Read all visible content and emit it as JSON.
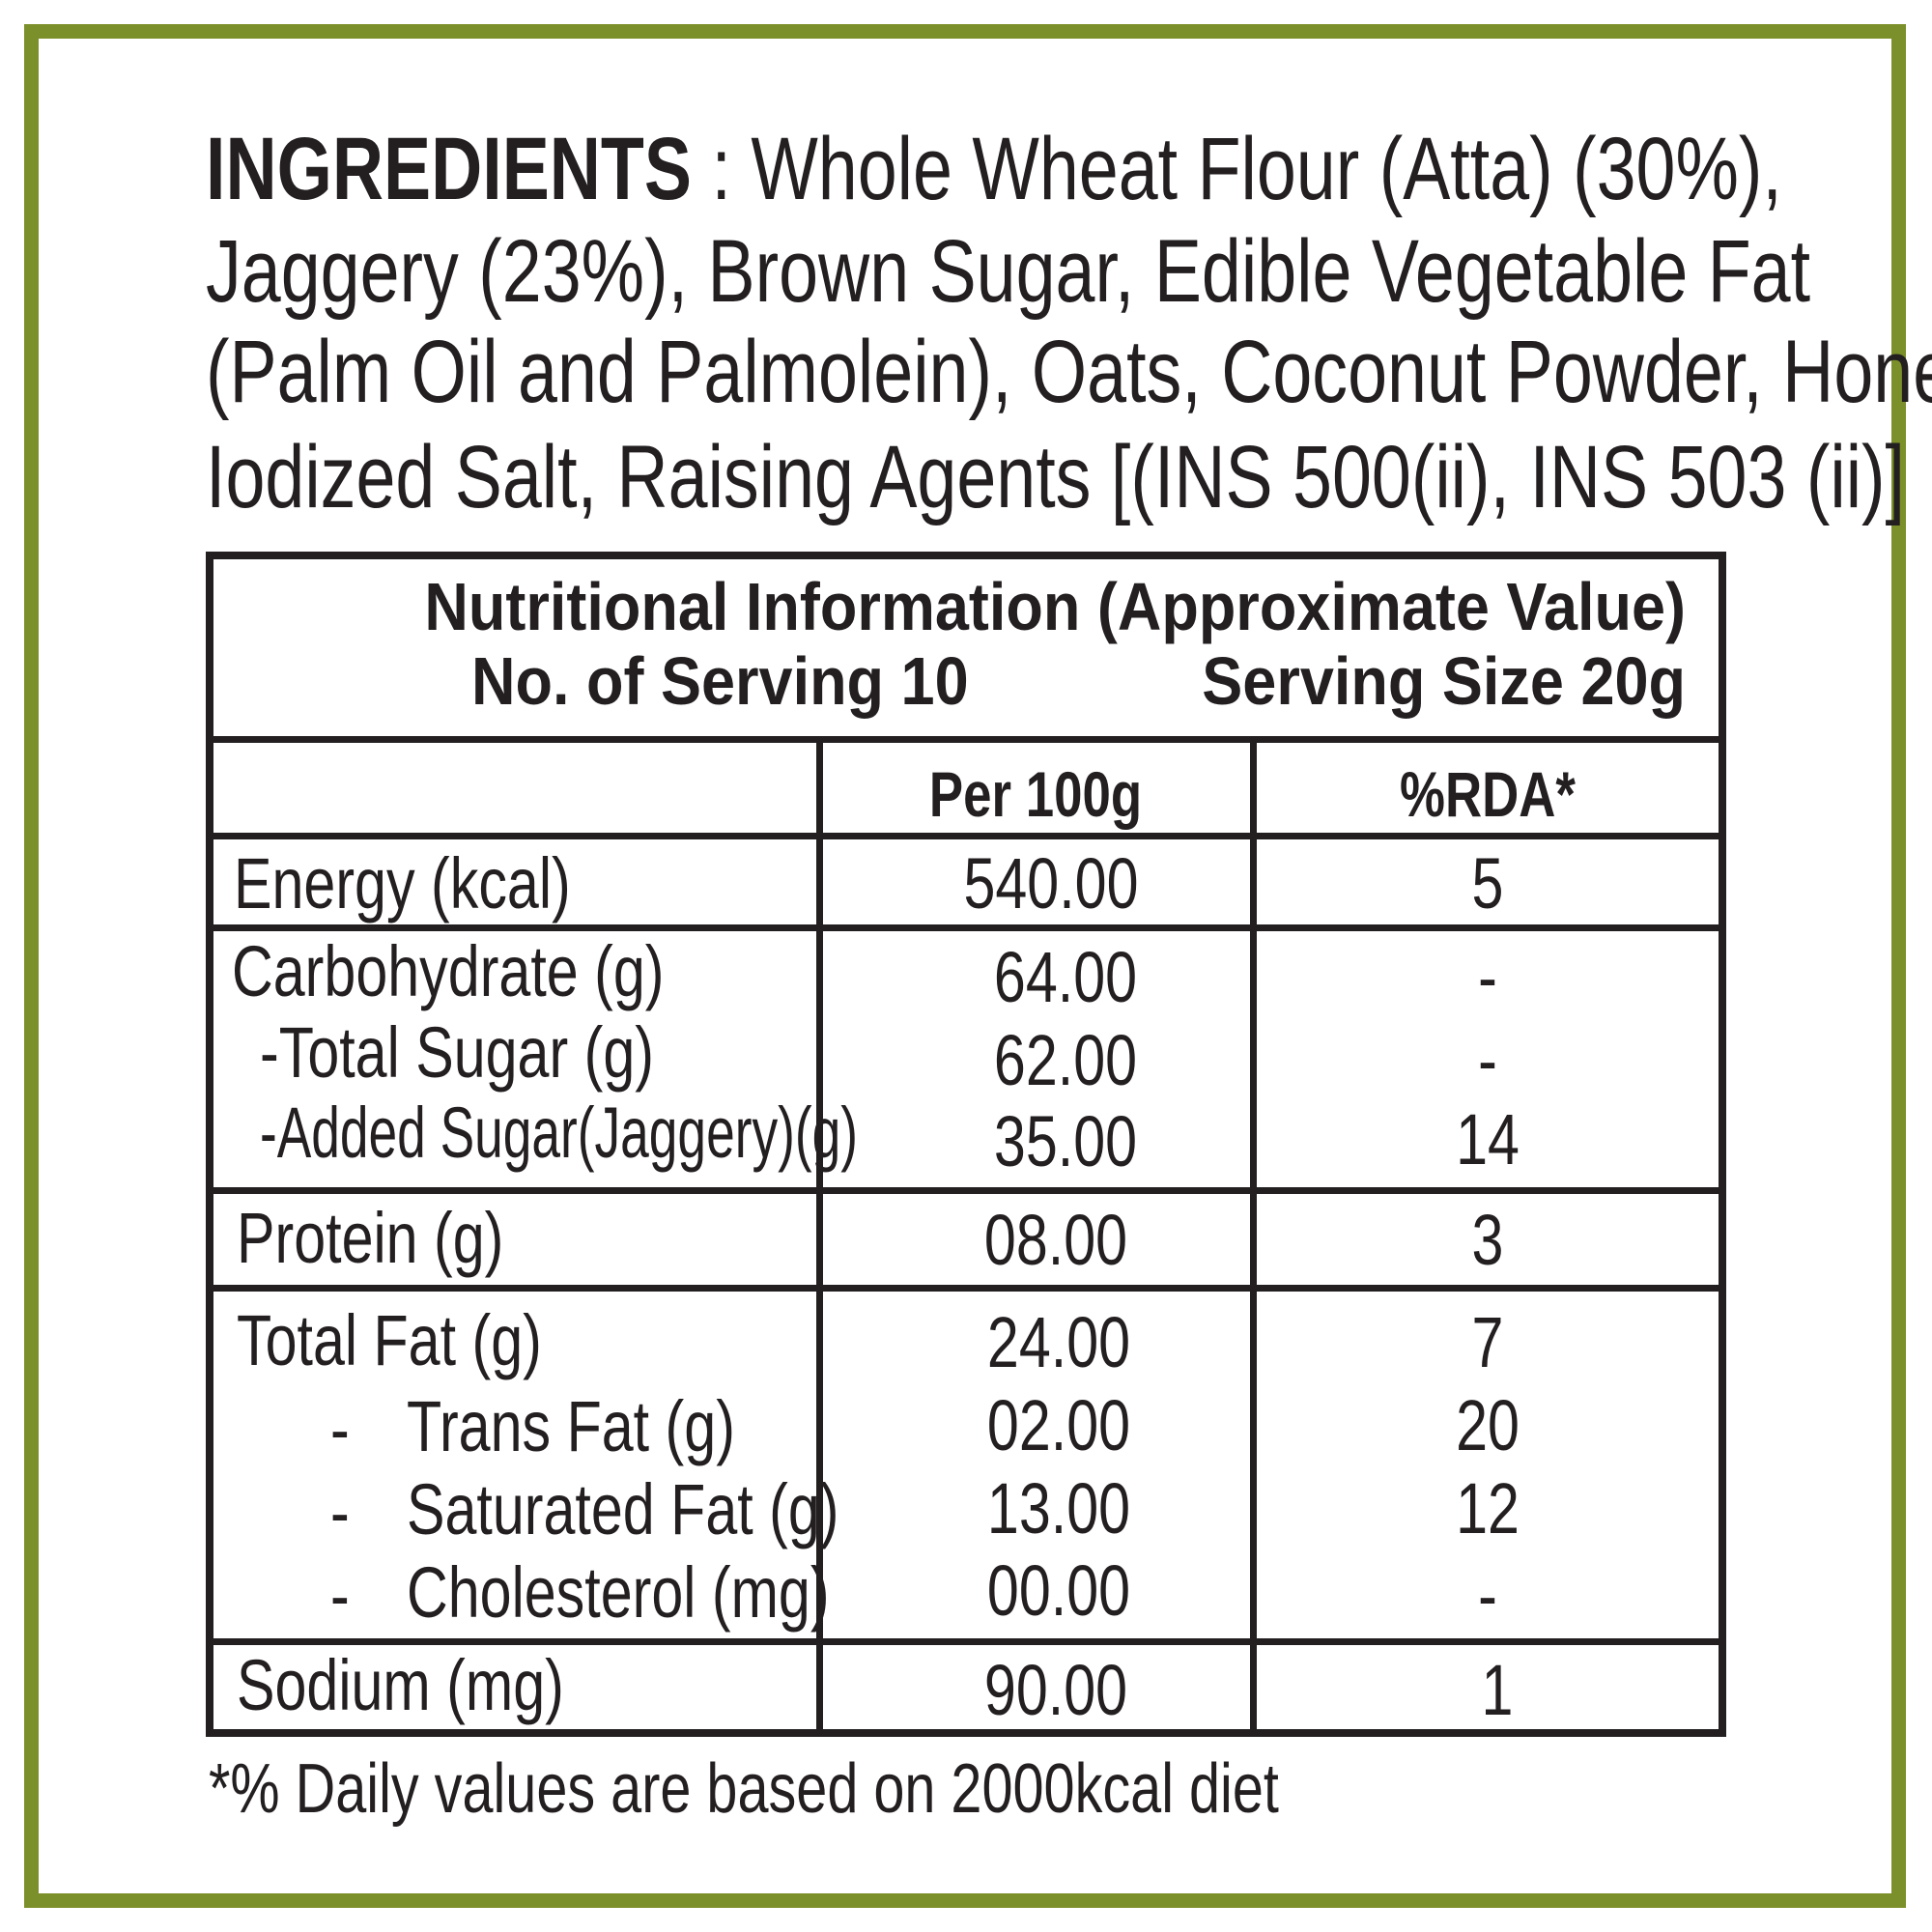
{
  "border_color": "#7b8f2a",
  "ingredients": {
    "label": "INGREDIENTS",
    "lines": [
      ": Whole Wheat Flour (Atta) (30%),",
      "Jaggery (23%), Brown Sugar, Edible Vegetable Fat",
      "(Palm Oil and Palmolein), Oats, Coconut Powder, Honey,",
      "Iodized Salt, Raising Agents [(INS 500(ii), INS 503 (ii)]"
    ]
  },
  "table": {
    "title": "Nutritional Information (Approximate Value)",
    "servings": "No. of Serving 10",
    "serving_size": "Serving Size 20g",
    "col_per100": "Per 100g",
    "col_rda": "%RDA*",
    "rows": [
      {
        "label": "Energy (kcal)",
        "value": "540.00",
        "rda": "5"
      },
      {
        "label": "Carbohydrate (g)",
        "value": "64.00",
        "rda": "-"
      },
      {
        "label": "-Total Sugar (g)",
        "value": "62.00",
        "rda": "-"
      },
      {
        "label": "-Added Sugar(Jaggery)(g)",
        "value": "35.00",
        "rda": "14"
      },
      {
        "label": "Protein (g)",
        "value": "08.00",
        "rda": "3"
      },
      {
        "label": "Total Fat (g)",
        "value": "24.00",
        "rda": "7"
      },
      {
        "label": "Trans Fat (g)",
        "value": "02.00",
        "rda": "20"
      },
      {
        "label": "Saturated Fat (g)",
        "value": "13.00",
        "rda": "12"
      },
      {
        "label": "Cholesterol (mg)",
        "value": "00.00",
        "rda": "-"
      },
      {
        "label": "Sodium (mg)",
        "value": "90.00",
        "rda": "1"
      }
    ],
    "dash": "-"
  },
  "footnote": "*% Daily values are based on 2000kcal diet"
}
